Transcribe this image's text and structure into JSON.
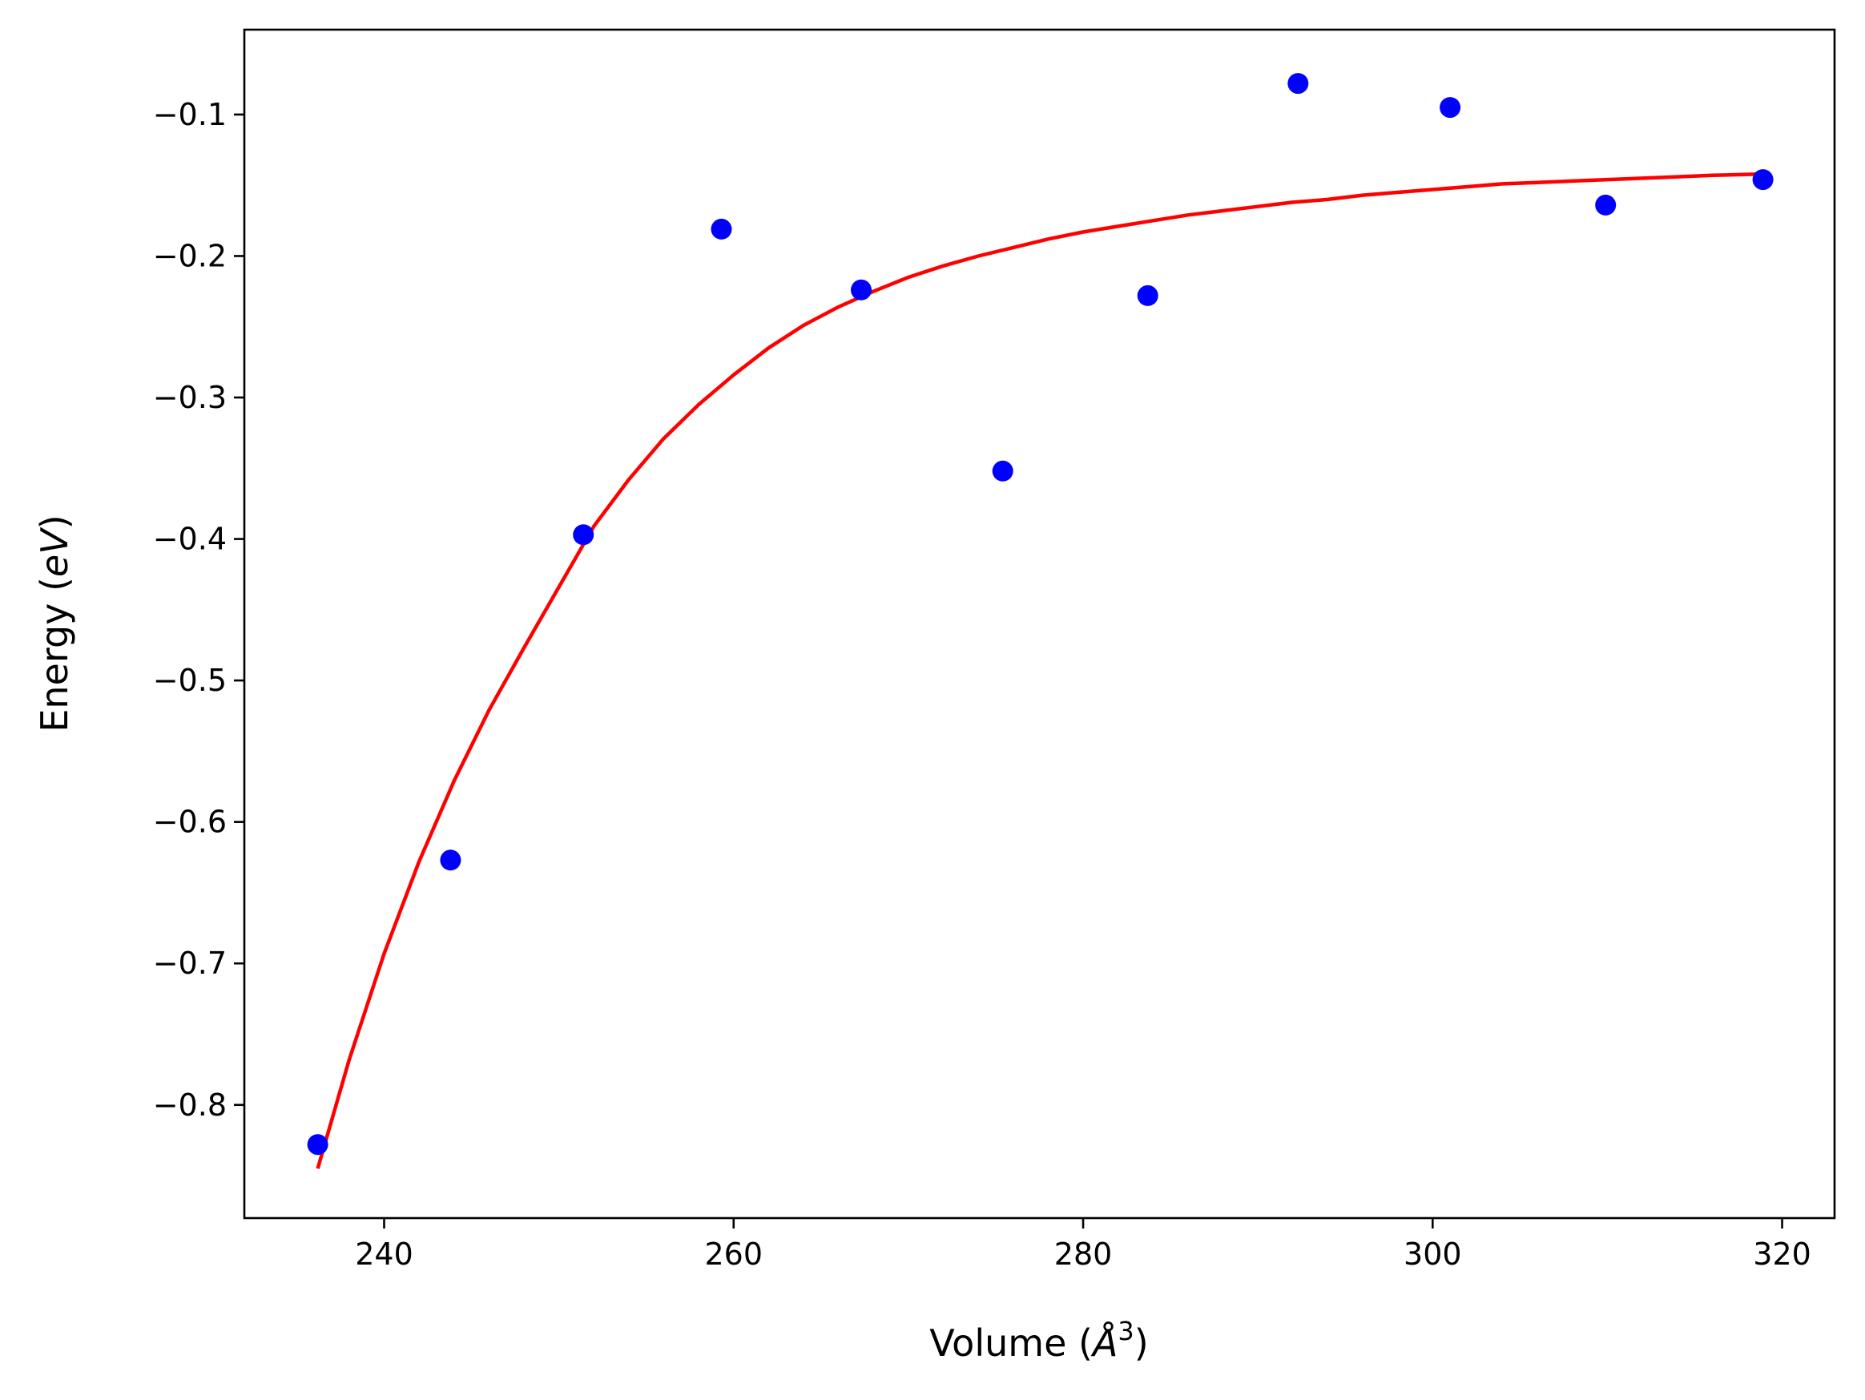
{
  "chart_data": {
    "type": "scatter",
    "xlabel": {
      "prefix": "Volume (",
      "symbol": "Å",
      "sup": "3",
      "suffix": ")"
    },
    "ylabel": {
      "prefix": "Energy (",
      "italic": "eV",
      "suffix": ")"
    },
    "xlim": [
      232,
      323
    ],
    "ylim": [
      -0.88,
      -0.04
    ],
    "xticks": [
      240,
      260,
      280,
      300,
      320
    ],
    "xtick_labels": [
      "240",
      "260",
      "280",
      "300",
      "320"
    ],
    "yticks": [
      -0.1,
      -0.2,
      -0.3,
      -0.4,
      -0.5,
      -0.6,
      -0.7,
      -0.8
    ],
    "ytick_labels": [
      "−0.1",
      "−0.2",
      "−0.3",
      "−0.4",
      "−0.5",
      "−0.6",
      "−0.7",
      "−0.8"
    ],
    "grid": false,
    "series": [
      {
        "kind": "points",
        "color": "#0000ff",
        "x": [
          236.2,
          243.8,
          251.4,
          259.3,
          267.3,
          275.4,
          283.7,
          292.3,
          301.0,
          309.9,
          318.9
        ],
        "y": [
          -0.828,
          -0.627,
          -0.397,
          -0.181,
          -0.224,
          -0.352,
          -0.228,
          -0.078,
          -0.095,
          -0.164,
          -0.146
        ]
      },
      {
        "kind": "fit-line",
        "color": "#ff0000",
        "x": [
          236.2,
          238,
          240,
          242,
          244,
          246,
          248,
          250,
          252,
          254,
          256,
          258,
          260,
          262,
          264,
          266,
          268,
          270,
          272,
          274,
          276,
          278,
          280,
          282,
          284,
          286,
          288,
          290,
          292,
          294,
          296,
          298,
          300,
          302,
          304,
          306,
          308,
          310,
          312,
          314,
          316,
          318.9
        ],
        "y": [
          -0.845,
          -0.768,
          -0.693,
          -0.628,
          -0.571,
          -0.521,
          -0.477,
          -0.434,
          -0.391,
          -0.358,
          -0.329,
          -0.305,
          -0.284,
          -0.265,
          -0.249,
          -0.236,
          -0.225,
          -0.215,
          -0.207,
          -0.2,
          -0.194,
          -0.188,
          -0.183,
          -0.179,
          -0.175,
          -0.171,
          -0.168,
          -0.165,
          -0.162,
          -0.16,
          -0.157,
          -0.155,
          -0.153,
          -0.151,
          -0.149,
          -0.148,
          -0.147,
          -0.146,
          -0.145,
          -0.144,
          -0.143,
          -0.142
        ]
      }
    ]
  }
}
